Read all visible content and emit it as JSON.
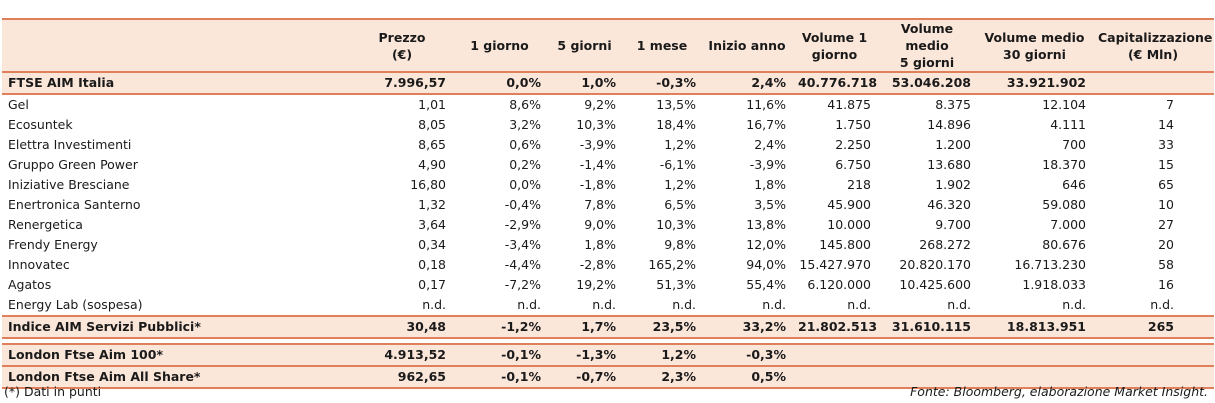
{
  "headers": [
    "",
    "Prezzo\n(€)",
    "1 giorno",
    "5 giorni",
    "1 mese",
    "Inizio anno",
    "Volume 1\ngiorno",
    "Volume medio\n5 giorni",
    "Volume medio\n30 giorni",
    "Capitalizzazione\n(€ Mln)"
  ],
  "index_row": [
    "FTSE AIM Italia",
    "7.996,57",
    "0,0%",
    "1,0%",
    "-0,3%",
    "2,4%",
    "40.776.718",
    "53.046.208",
    "33.921.902",
    ""
  ],
  "rows": [
    [
      "Gel",
      "1,01",
      "8,6%",
      "9,2%",
      "13,5%",
      "11,6%",
      "41.875",
      "8.375",
      "12.104",
      "7"
    ],
    [
      "Ecosuntek",
      "8,05",
      "3,2%",
      "10,3%",
      "18,4%",
      "16,7%",
      "1.750",
      "14.896",
      "4.111",
      "14"
    ],
    [
      "Elettra Investimenti",
      "8,65",
      "0,6%",
      "-3,9%",
      "1,2%",
      "2,4%",
      "2.250",
      "1.200",
      "700",
      "33"
    ],
    [
      "Gruppo Green Power",
      "4,90",
      "0,2%",
      "-1,4%",
      "-6,1%",
      "-3,9%",
      "6.750",
      "13.680",
      "18.370",
      "15"
    ],
    [
      "Iniziative Bresciane",
      "16,80",
      "0,0%",
      "-1,8%",
      "1,2%",
      "1,8%",
      "218",
      "1.902",
      "646",
      "65"
    ],
    [
      "Enertronica Santerno",
      "1,32",
      "-0,4%",
      "7,8%",
      "6,5%",
      "3,5%",
      "45.900",
      "46.320",
      "59.080",
      "10"
    ],
    [
      "Renergetica",
      "3,64",
      "-2,9%",
      "9,0%",
      "10,3%",
      "13,8%",
      "10.000",
      "9.700",
      "7.000",
      "27"
    ],
    [
      "Frendy Energy",
      "0,34",
      "-3,4%",
      "1,8%",
      "9,8%",
      "12,0%",
      "145.800",
      "268.272",
      "80.676",
      "20"
    ],
    [
      "Innovatec",
      "0,18",
      "-4,4%",
      "-2,8%",
      "165,2%",
      "94,0%",
      "15.427.970",
      "20.820.170",
      "16.713.230",
      "58"
    ],
    [
      "Agatos",
      "0,17",
      "-7,2%",
      "19,2%",
      "51,3%",
      "55,4%",
      "6.120.000",
      "10.425.600",
      "1.918.033",
      "16"
    ],
    [
      "Energy Lab (sospesa)",
      "n.d.",
      "n.d.",
      "n.d.",
      "n.d.",
      "n.d.",
      "n.d.",
      "n.d.",
      "n.d.",
      "n.d."
    ]
  ],
  "services_row": [
    "Indice AIM Servizi Pubblici*",
    "30,48",
    "-1,2%",
    "1,7%",
    "23,5%",
    "33,2%",
    "21.802.513",
    "31.610.115",
    "18.813.951",
    "265"
  ],
  "london_rows": [
    [
      "London Ftse Aim 100*",
      "4.913,52",
      "-0,1%",
      "-1,3%",
      "1,2%",
      "-0,3%",
      "",
      "",
      "",
      ""
    ],
    [
      "London Ftse Aim All Share*",
      "962,65",
      "-0,1%",
      "-0,7%",
      "2,3%",
      "0,5%",
      "",
      "",
      "",
      ""
    ]
  ],
  "footer": {
    "note": "(*) Dati in punti",
    "source": "Fonte: Bloomberg, elaborazione Market Insight."
  },
  "colors": {
    "accent_line": "#e0805a",
    "fill": "#fbe6da"
  }
}
